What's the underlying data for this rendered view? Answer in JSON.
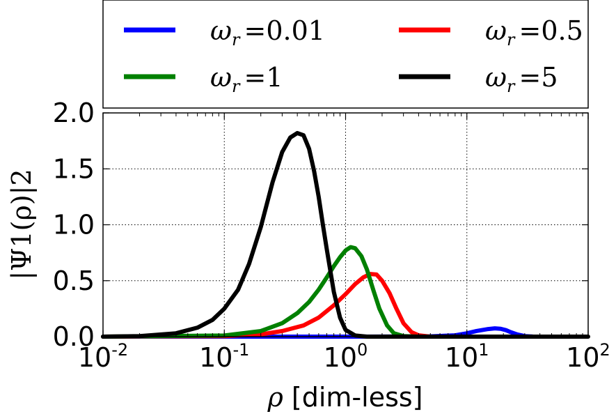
{
  "chart_data": {
    "type": "line",
    "x_scale": "log",
    "xlim": [
      0.01,
      100
    ],
    "ylim": [
      0.0,
      2.0
    ],
    "grid": true,
    "legend_position": "top",
    "legend_columns": 2,
    "xlabel_symbol": "ρ",
    "xlabel_text": "[dim-less]",
    "ylabel": "|Ψ1(ρ)|2",
    "x_ticks": [
      {
        "value": 0.01,
        "base": "10",
        "exp": "-2"
      },
      {
        "value": 0.1,
        "base": "10",
        "exp": "-1"
      },
      {
        "value": 1,
        "base": "10",
        "exp": "0"
      },
      {
        "value": 10,
        "base": "10",
        "exp": "1"
      },
      {
        "value": 100,
        "base": "10",
        "exp": "2"
      }
    ],
    "y_ticks": [
      {
        "value": 0.0,
        "label": "0.0"
      },
      {
        "value": 0.5,
        "label": "0.5"
      },
      {
        "value": 1.0,
        "label": "1.0"
      },
      {
        "value": 1.5,
        "label": "1.5"
      },
      {
        "value": 2.0,
        "label": "2.0"
      }
    ],
    "series": [
      {
        "name": "ω_r = 0.01",
        "symbol": "ω",
        "sub": "r",
        "value_text": "0.01",
        "color": "#0000ff",
        "x": [
          0.01,
          1,
          5,
          8,
          10,
          12,
          15,
          17,
          19,
          21,
          23,
          26,
          30,
          35,
          50
        ],
        "y": [
          0,
          0,
          0.002,
          0.012,
          0.03,
          0.05,
          0.068,
          0.074,
          0.07,
          0.058,
          0.04,
          0.02,
          0.005,
          0.001,
          0
        ]
      },
      {
        "name": "ω_r = 0.5",
        "symbol": "ω",
        "sub": "r",
        "value_text": "0.5",
        "color": "#ff0000",
        "x": [
          0.01,
          0.1,
          0.2,
          0.3,
          0.45,
          0.6,
          0.8,
          1.0,
          1.2,
          1.4,
          1.6,
          1.8,
          2.0,
          2.3,
          2.6,
          3.0,
          3.5,
          4.0,
          5.0
        ],
        "y": [
          0,
          0.005,
          0.02,
          0.05,
          0.1,
          0.17,
          0.28,
          0.38,
          0.47,
          0.53,
          0.56,
          0.555,
          0.5,
          0.39,
          0.26,
          0.12,
          0.04,
          0.012,
          0
        ]
      },
      {
        "name": "ω_r = 1",
        "symbol": "ω",
        "sub": "r",
        "value_text": "1",
        "color": "#008000",
        "x": [
          0.01,
          0.1,
          0.2,
          0.3,
          0.4,
          0.5,
          0.6,
          0.7,
          0.8,
          0.9,
          1.0,
          1.1,
          1.2,
          1.35,
          1.5,
          1.7,
          1.9,
          2.2,
          2.5,
          3.0,
          4.0
        ],
        "y": [
          0,
          0.01,
          0.05,
          0.12,
          0.21,
          0.31,
          0.42,
          0.53,
          0.63,
          0.71,
          0.77,
          0.8,
          0.79,
          0.72,
          0.6,
          0.41,
          0.25,
          0.1,
          0.03,
          0.005,
          0
        ]
      },
      {
        "name": "ω_r = 5",
        "symbol": "ω",
        "sub": "r",
        "value_text": "5",
        "color": "#000000",
        "x": [
          0.01,
          0.02,
          0.04,
          0.06,
          0.08,
          0.1,
          0.13,
          0.16,
          0.2,
          0.25,
          0.3,
          0.35,
          0.4,
          0.45,
          0.5,
          0.55,
          0.6,
          0.65,
          0.7,
          0.8,
          0.9,
          1.0,
          1.2,
          1.5,
          2.0,
          100
        ],
        "y": [
          0,
          0.005,
          0.03,
          0.08,
          0.15,
          0.25,
          0.42,
          0.65,
          0.98,
          1.38,
          1.65,
          1.78,
          1.82,
          1.8,
          1.68,
          1.48,
          1.25,
          1.0,
          0.78,
          0.4,
          0.17,
          0.06,
          0.01,
          0,
          0,
          0
        ]
      }
    ]
  }
}
